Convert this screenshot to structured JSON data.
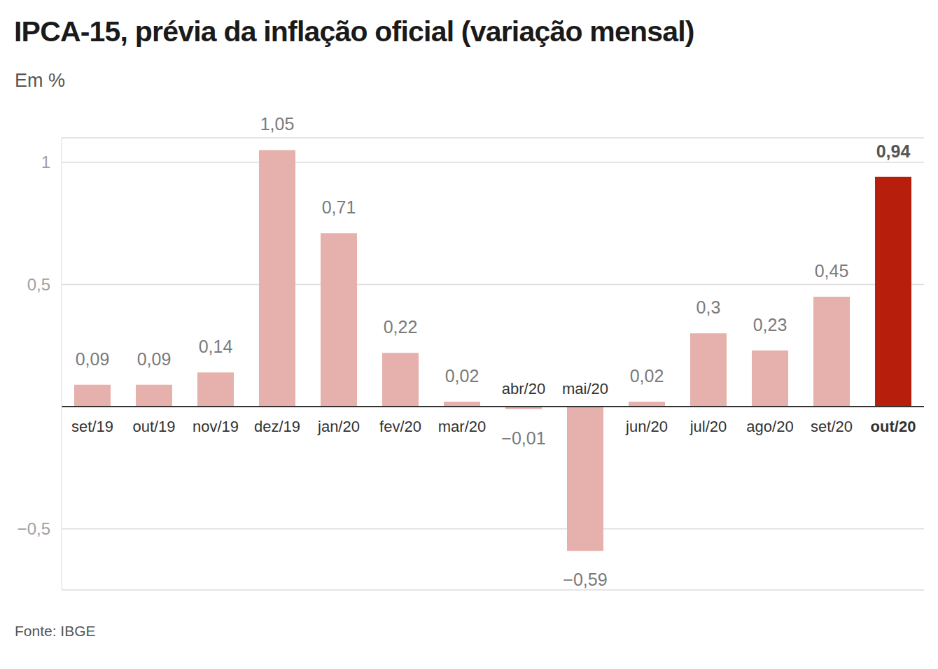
{
  "chart_data": {
    "type": "bar",
    "title": "IPCA-15, prévia da inflação oficial (variação mensal)",
    "subtitle": "Em %",
    "source": "Fonte: IBGE",
    "categories": [
      "set/19",
      "out/19",
      "nov/19",
      "dez/19",
      "jan/20",
      "fev/20",
      "mar/20",
      "abr/20",
      "mai/20",
      "jun/20",
      "jul/20",
      "ago/20",
      "set/20",
      "out/20"
    ],
    "values": [
      0.09,
      0.09,
      0.14,
      1.05,
      0.71,
      0.22,
      0.02,
      -0.01,
      -0.59,
      0.02,
      0.3,
      0.23,
      0.45,
      0.94
    ],
    "value_labels": [
      "0,09",
      "0,09",
      "0,14",
      "1,05",
      "0,71",
      "0,22",
      "0,02",
      "−0,01",
      "−0,59",
      "0,02",
      "0,3",
      "0,23",
      "0,45",
      "0,94"
    ],
    "colors": [
      "#e6b0ac",
      "#e6b0ac",
      "#e6b0ac",
      "#e6b0ac",
      "#e6b0ac",
      "#e6b0ac",
      "#e6b0ac",
      "#e6b0ac",
      "#e6b0ac",
      "#e6b0ac",
      "#e6b0ac",
      "#e6b0ac",
      "#e6b0ac",
      "#b81e0c"
    ],
    "ylim": [
      -0.75,
      1.1
    ],
    "yticks": [
      {
        "value": -0.5,
        "label": "−0,5"
      },
      {
        "value": 0.5,
        "label": "0,5"
      },
      1
    ],
    "grid": true,
    "data_labels": true
  }
}
